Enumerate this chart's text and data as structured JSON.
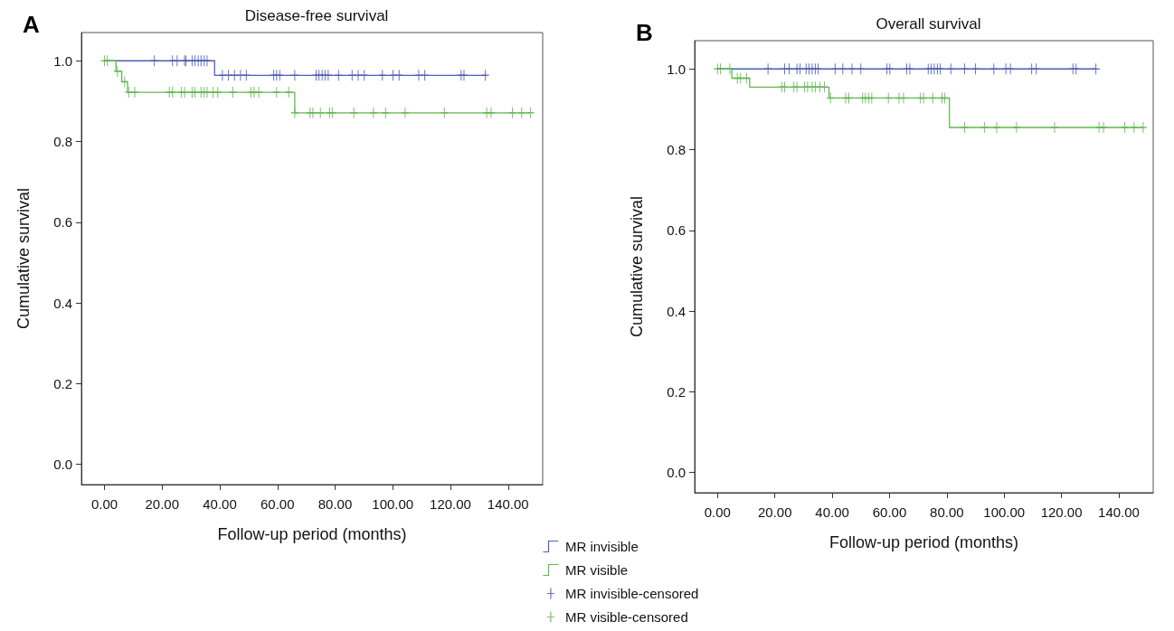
{
  "chart_data": [
    {
      "type": "step",
      "title": "Disease-free survival",
      "xlabel": "Follow-up period (months)",
      "ylabel": "Cumulative survival",
      "annotations": [
        "A"
      ],
      "xlim": [
        -8,
        152
      ],
      "ylim": [
        -0.05,
        1.07
      ],
      "xticks": [
        {
          "value": 0,
          "label": "0.00"
        },
        {
          "value": 20,
          "label": "20.00"
        },
        {
          "value": 40,
          "label": "40.00"
        },
        {
          "value": 60,
          "label": "60.00"
        },
        {
          "value": 80,
          "label": "80.00"
        },
        {
          "value": 100,
          "label": "100.00"
        },
        {
          "value": 120,
          "label": "120.00"
        },
        {
          "value": 140,
          "label": "140.00"
        }
      ],
      "yticks": [
        {
          "value": 0,
          "label": "0.0"
        },
        {
          "value": 0.2,
          "label": "0.2"
        },
        {
          "value": 0.4,
          "label": "0.4"
        },
        {
          "value": 0.6,
          "label": "0.6"
        },
        {
          "value": 0.8,
          "label": "0.8"
        },
        {
          "value": 1,
          "label": "1.0"
        }
      ],
      "grid": false,
      "series": [
        {
          "color": "#4c5fb8",
          "x": [
            0,
            38.2,
            132.1
          ],
          "values": [
            1,
            0.964,
            0.964
          ]
        },
        {
          "color": "#62b84f",
          "x": [
            0,
            4,
            6,
            8,
            66,
            147.8
          ],
          "values": [
            1,
            0.974,
            0.948,
            0.922,
            0.871,
            0.871
          ]
        },
        {
          "type": "scatter",
          "marker": "cross",
          "color": "#3d4fae",
          "x": [
            17.3,
            23.6,
            25.2,
            27.8,
            28.3,
            30.4,
            31.4,
            32.5,
            33.5,
            34.6,
            35.6,
            40.9,
            43,
            45.1,
            47.2,
            49.2,
            58.7,
            59.7,
            60.8,
            66,
            73.4,
            74.4,
            75.5,
            76.5,
            77.6,
            81.2,
            85.9,
            88,
            90.1,
            96.4,
            100.1,
            102.2,
            109,
            111.1,
            123.7,
            124.7,
            132.1
          ],
          "values": [
            1,
            1,
            1,
            1,
            1,
            1,
            1,
            1,
            1,
            1,
            1,
            0.964,
            0.964,
            0.964,
            0.964,
            0.964,
            0.964,
            0.964,
            0.964,
            0.964,
            0.964,
            0.964,
            0.964,
            0.964,
            0.964,
            0.964,
            0.964,
            0.964,
            0.964,
            0.964,
            0.964,
            0.964,
            0.964,
            0.964,
            0.964,
            0.964,
            0.964
          ]
        },
        {
          "type": "scatter",
          "marker": "cross",
          "color": "#55b043",
          "x": [
            0,
            1,
            4.5,
            7,
            8.4,
            10.5,
            22.5,
            23.6,
            26.7,
            27.8,
            30.4,
            31.4,
            33.5,
            34.6,
            35.6,
            37.7,
            39.3,
            44.5,
            50.8,
            51.9,
            53.5,
            59.7,
            63.9,
            66,
            71.3,
            72.3,
            74.9,
            78.1,
            79.1,
            86.5,
            93.3,
            97.5,
            104.3,
            117.9,
            132.6,
            134.1,
            141.5,
            144.7,
            147.8
          ],
          "values": [
            1,
            1,
            0.974,
            0.948,
            0.922,
            0.922,
            0.922,
            0.922,
            0.922,
            0.922,
            0.922,
            0.922,
            0.922,
            0.922,
            0.922,
            0.922,
            0.922,
            0.922,
            0.922,
            0.922,
            0.922,
            0.922,
            0.922,
            0.871,
            0.871,
            0.871,
            0.871,
            0.871,
            0.871,
            0.871,
            0.871,
            0.871,
            0.871,
            0.871,
            0.871,
            0.871,
            0.871,
            0.871,
            0.871
          ]
        }
      ]
    },
    {
      "type": "step",
      "title": "Overall survival",
      "xlabel": "Follow-up period (months)",
      "ylabel": "Cumulative survival",
      "annotations": [
        "B"
      ],
      "legend": "bottom left",
      "xlim": [
        -8,
        152
      ],
      "ylim": [
        -0.05,
        1.07
      ],
      "xticks": [
        {
          "value": 0,
          "label": "0.00"
        },
        {
          "value": 20,
          "label": "20.00"
        },
        {
          "value": 40,
          "label": "40.00"
        },
        {
          "value": 60,
          "label": "60.00"
        },
        {
          "value": 80,
          "label": "80.00"
        },
        {
          "value": 100,
          "label": "100.00"
        },
        {
          "value": 120,
          "label": "120.00"
        },
        {
          "value": 140,
          "label": "140.00"
        }
      ],
      "yticks": [
        {
          "value": 0,
          "label": "0.0"
        },
        {
          "value": 0.2,
          "label": "0.2"
        },
        {
          "value": 0.4,
          "label": "0.4"
        },
        {
          "value": 0.6,
          "label": "0.6"
        },
        {
          "value": 0.8,
          "label": "0.8"
        },
        {
          "value": 1,
          "label": "1.0"
        }
      ],
      "grid": false,
      "series": [
        {
          "name": "MR invisible",
          "color": "#4c5fb8",
          "x": [
            0,
            132
          ],
          "values": [
            1,
            1
          ]
        },
        {
          "name": "MR visible",
          "color": "#62b84f",
          "x": [
            0,
            5,
            11.2,
            38.9,
            80.9,
            148.5
          ],
          "values": [
            1,
            0.977,
            0.955,
            0.928,
            0.855,
            0.855
          ]
        },
        {
          "name": "MR invisible-censored",
          "type": "scatter",
          "marker": "cross",
          "color": "#3d4fae",
          "x": [
            17.6,
            23.4,
            25,
            27.7,
            28.8,
            30.9,
            31.9,
            33,
            34.1,
            35.1,
            41,
            43.7,
            46.9,
            50,
            59.1,
            60.1,
            66,
            67.1,
            73.5,
            74.5,
            75.6,
            76.7,
            77.7,
            81.4,
            86.2,
            90,
            96.4,
            100.6,
            102.2,
            109.6,
            111.2,
            124,
            125.1,
            132
          ],
          "values": [
            1,
            1,
            1,
            1,
            1,
            1,
            1,
            1,
            1,
            1,
            1,
            1,
            1,
            1,
            1,
            1,
            1,
            1,
            1,
            1,
            1,
            1,
            1,
            1,
            1,
            1,
            1,
            1,
            1,
            1,
            1,
            1,
            1,
            1
          ]
        },
        {
          "name": "MR visible-censored",
          "type": "scatter",
          "marker": "cross",
          "color": "#55b043",
          "x": [
            0,
            1,
            4.3,
            6.9,
            8,
            10.1,
            22.4,
            23.4,
            26.6,
            27.7,
            30.3,
            31.4,
            33,
            34.1,
            35.7,
            37.3,
            39.4,
            44.7,
            45.8,
            50.6,
            51.6,
            52.7,
            53.8,
            59.6,
            63.3,
            64.9,
            70.8,
            71.9,
            75.1,
            78.3,
            79.3,
            86.2,
            93.2,
            97.4,
            104.3,
            117.6,
            133.1,
            134.7,
            142.1,
            145.3,
            148.5
          ],
          "values": [
            1,
            1,
            1,
            0.977,
            0.977,
            0.977,
            0.955,
            0.955,
            0.955,
            0.955,
            0.955,
            0.955,
            0.955,
            0.955,
            0.955,
            0.955,
            0.928,
            0.928,
            0.928,
            0.928,
            0.928,
            0.928,
            0.928,
            0.928,
            0.928,
            0.928,
            0.928,
            0.928,
            0.928,
            0.928,
            0.928,
            0.855,
            0.855,
            0.855,
            0.855,
            0.855,
            0.855,
            0.855,
            0.855,
            0.855,
            0.855
          ]
        }
      ]
    }
  ]
}
